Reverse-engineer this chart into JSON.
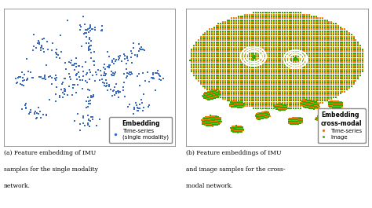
{
  "fig_width": 4.74,
  "fig_height": 2.65,
  "dpi": 100,
  "bg_color": "#ffffff",
  "panel_a": {
    "scatter_color": "#3a6bbf",
    "marker_size": 2.5,
    "legend_title": "Embedding",
    "legend_label": "Time-series\n(single modality)",
    "caption_a1": "(a) Feature embedding of IMU",
    "caption_a2": "samples for the single modality",
    "caption_a3": "network."
  },
  "panel_b": {
    "orange_color": "#FF7700",
    "green_color": "#33AA00",
    "marker_size": 1.8,
    "legend_title": "Embedding\ncross-modal",
    "legend_label_ts": "Time-series",
    "legend_label_img": "Image",
    "caption_b1": "(b) Feature embeddings of IMU",
    "caption_b2": "and image samples for the cross-",
    "caption_b3": "modal network."
  }
}
